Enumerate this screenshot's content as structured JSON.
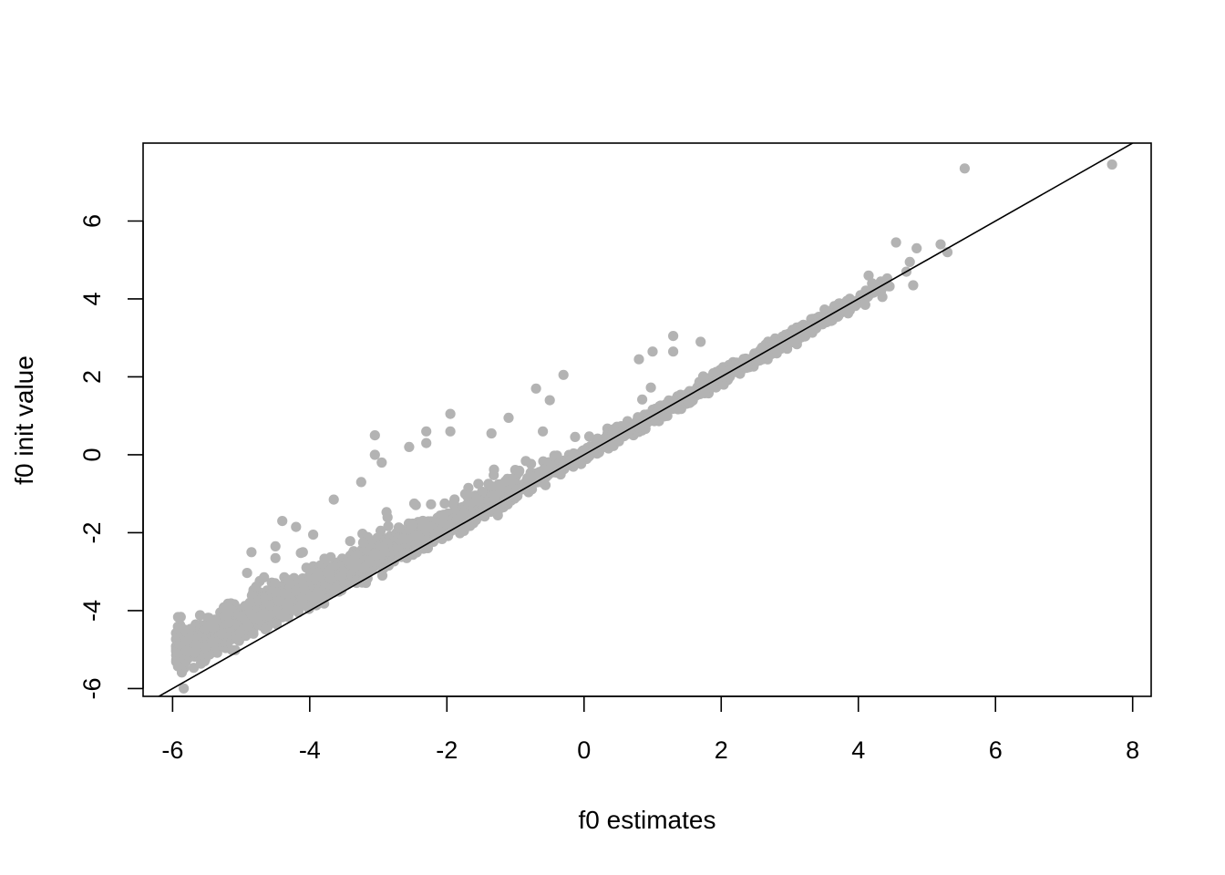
{
  "chart_data": {
    "type": "scatter",
    "title": "",
    "xlabel": "f0 estimates",
    "ylabel": "f0 init value",
    "xlim": [
      -6.43,
      8.27
    ],
    "ylim": [
      -6.2,
      8.0
    ],
    "x_ticks": [
      -6,
      -4,
      -2,
      0,
      2,
      4,
      6,
      8
    ],
    "y_ticks": [
      -6,
      -4,
      -2,
      0,
      2,
      4,
      6
    ],
    "x_tick_labels": [
      "-6",
      "-4",
      "-2",
      "0",
      "2",
      "4",
      "6",
      "8"
    ],
    "y_tick_labels": [
      "-6",
      "-4",
      "-2",
      "0",
      "2",
      "4",
      "6"
    ],
    "grid": false,
    "legend": "none",
    "point_color": "#b3b3b3",
    "reference_line": {
      "slope": 1,
      "intercept": 0,
      "color": "#000000"
    },
    "band_points": {
      "description": "dense cloud of thousands of points following y ≈ x (slightly above for x < 0), spread widening at the low end",
      "x_range": [
        -5.95,
        3.9
      ]
    },
    "notable_points": [
      {
        "x": 7.7,
        "y": 7.45
      },
      {
        "x": 5.55,
        "y": 7.35
      },
      {
        "x": 4.55,
        "y": 5.45
      },
      {
        "x": 4.85,
        "y": 5.3
      },
      {
        "x": 5.2,
        "y": 5.4
      },
      {
        "x": 5.3,
        "y": 5.2
      },
      {
        "x": 4.75,
        "y": 4.95
      },
      {
        "x": 4.7,
        "y": 4.7
      },
      {
        "x": 4.8,
        "y": 4.35
      },
      {
        "x": 4.15,
        "y": 4.6
      },
      {
        "x": 4.2,
        "y": 4.4
      },
      {
        "x": 4.35,
        "y": 4.05
      },
      {
        "x": 4.1,
        "y": 3.85
      },
      {
        "x": 3.9,
        "y": 3.8
      },
      {
        "x": 1.3,
        "y": 3.05
      },
      {
        "x": 1.3,
        "y": 2.65
      },
      {
        "x": 1.0,
        "y": 2.65
      },
      {
        "x": 1.7,
        "y": 2.9
      },
      {
        "x": 0.8,
        "y": 2.45
      },
      {
        "x": -0.3,
        "y": 2.05
      },
      {
        "x": -0.7,
        "y": 1.7
      },
      {
        "x": -0.5,
        "y": 1.4
      },
      {
        "x": -1.95,
        "y": 1.05
      },
      {
        "x": -1.95,
        "y": 0.6
      },
      {
        "x": -1.35,
        "y": 0.55
      },
      {
        "x": -2.3,
        "y": 0.6
      },
      {
        "x": -3.05,
        "y": 0.5
      },
      {
        "x": -1.1,
        "y": 0.95
      },
      {
        "x": -0.6,
        "y": 0.6
      },
      {
        "x": -3.05,
        "y": 0.0
      },
      {
        "x": -2.55,
        "y": 0.2
      },
      {
        "x": -2.3,
        "y": 0.3
      },
      {
        "x": -3.65,
        "y": -1.15
      },
      {
        "x": -4.4,
        "y": -1.7
      },
      {
        "x": -4.2,
        "y": -1.85
      },
      {
        "x": -4.85,
        "y": -2.5
      },
      {
        "x": -4.5,
        "y": -2.35
      },
      {
        "x": -4.5,
        "y": -2.65
      },
      {
        "x": -3.95,
        "y": -2.05
      },
      {
        "x": -4.1,
        "y": -2.5
      },
      {
        "x": -4.85,
        "y": -4.1
      },
      {
        "x": -4.9,
        "y": -4.4
      },
      {
        "x": -3.25,
        "y": -0.7
      },
      {
        "x": -2.95,
        "y": -0.2
      }
    ]
  }
}
